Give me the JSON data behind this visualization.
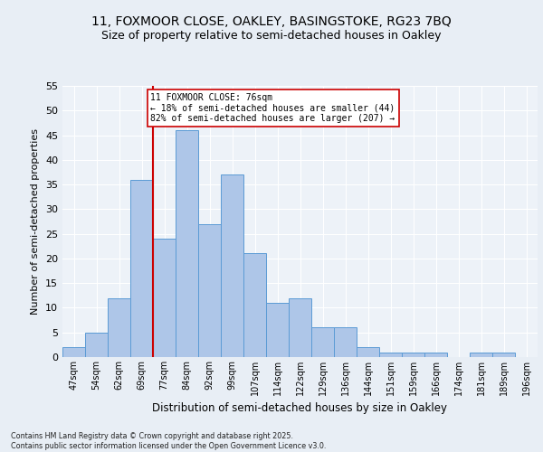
{
  "title1": "11, FOXMOOR CLOSE, OAKLEY, BASINGSTOKE, RG23 7BQ",
  "title2": "Size of property relative to semi-detached houses in Oakley",
  "xlabel": "Distribution of semi-detached houses by size in Oakley",
  "ylabel": "Number of semi-detached properties",
  "categories": [
    "47sqm",
    "54sqm",
    "62sqm",
    "69sqm",
    "77sqm",
    "84sqm",
    "92sqm",
    "99sqm",
    "107sqm",
    "114sqm",
    "122sqm",
    "129sqm",
    "136sqm",
    "144sqm",
    "151sqm",
    "159sqm",
    "166sqm",
    "174sqm",
    "181sqm",
    "189sqm",
    "196sqm"
  ],
  "values": [
    2,
    5,
    12,
    36,
    24,
    46,
    27,
    37,
    21,
    11,
    12,
    6,
    6,
    2,
    1,
    1,
    1,
    0,
    1,
    1,
    0
  ],
  "bar_color": "#aec6e8",
  "bar_edge_color": "#5b9bd5",
  "property_line_idx": 4,
  "annotation_text": "11 FOXMOOR CLOSE: 76sqm\n← 18% of semi-detached houses are smaller (44)\n82% of semi-detached houses are larger (207) →",
  "annotation_box_color": "#ffffff",
  "annotation_box_edge": "#cc0000",
  "vline_color": "#cc0000",
  "ylim": [
    0,
    55
  ],
  "yticks": [
    0,
    5,
    10,
    15,
    20,
    25,
    30,
    35,
    40,
    45,
    50,
    55
  ],
  "footnote": "Contains HM Land Registry data © Crown copyright and database right 2025.\nContains public sector information licensed under the Open Government Licence v3.0.",
  "bg_color": "#e8eef5",
  "plot_bg_color": "#edf2f8",
  "title_fontsize": 10,
  "subtitle_fontsize": 9,
  "grid_color": "#ffffff"
}
